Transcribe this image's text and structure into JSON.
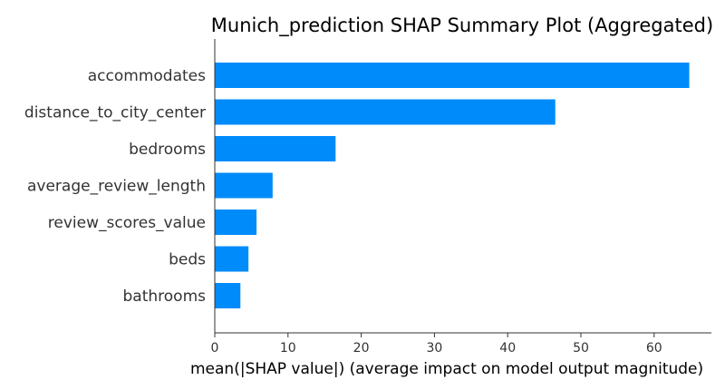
{
  "chart_data": {
    "type": "bar",
    "orientation": "horizontal",
    "title": "Munich_prediction SHAP Summary Plot (Aggregated)",
    "xlabel": "mean(|SHAP value|) (average impact on model output magnitude)",
    "ylabel": "",
    "categories": [
      "accommodates",
      "distance_to_city_center",
      "bedrooms",
      "average_review_length",
      "review_scores_value",
      "beds",
      "bathrooms"
    ],
    "values": [
      64.8,
      46.5,
      16.5,
      7.9,
      5.7,
      4.6,
      3.5
    ],
    "xlim": [
      0,
      67
    ],
    "xticks": [
      "0",
      "10",
      "20",
      "30",
      "40",
      "50",
      "60"
    ],
    "grid": false,
    "legend": "none",
    "bar_color": "#008bfb"
  }
}
